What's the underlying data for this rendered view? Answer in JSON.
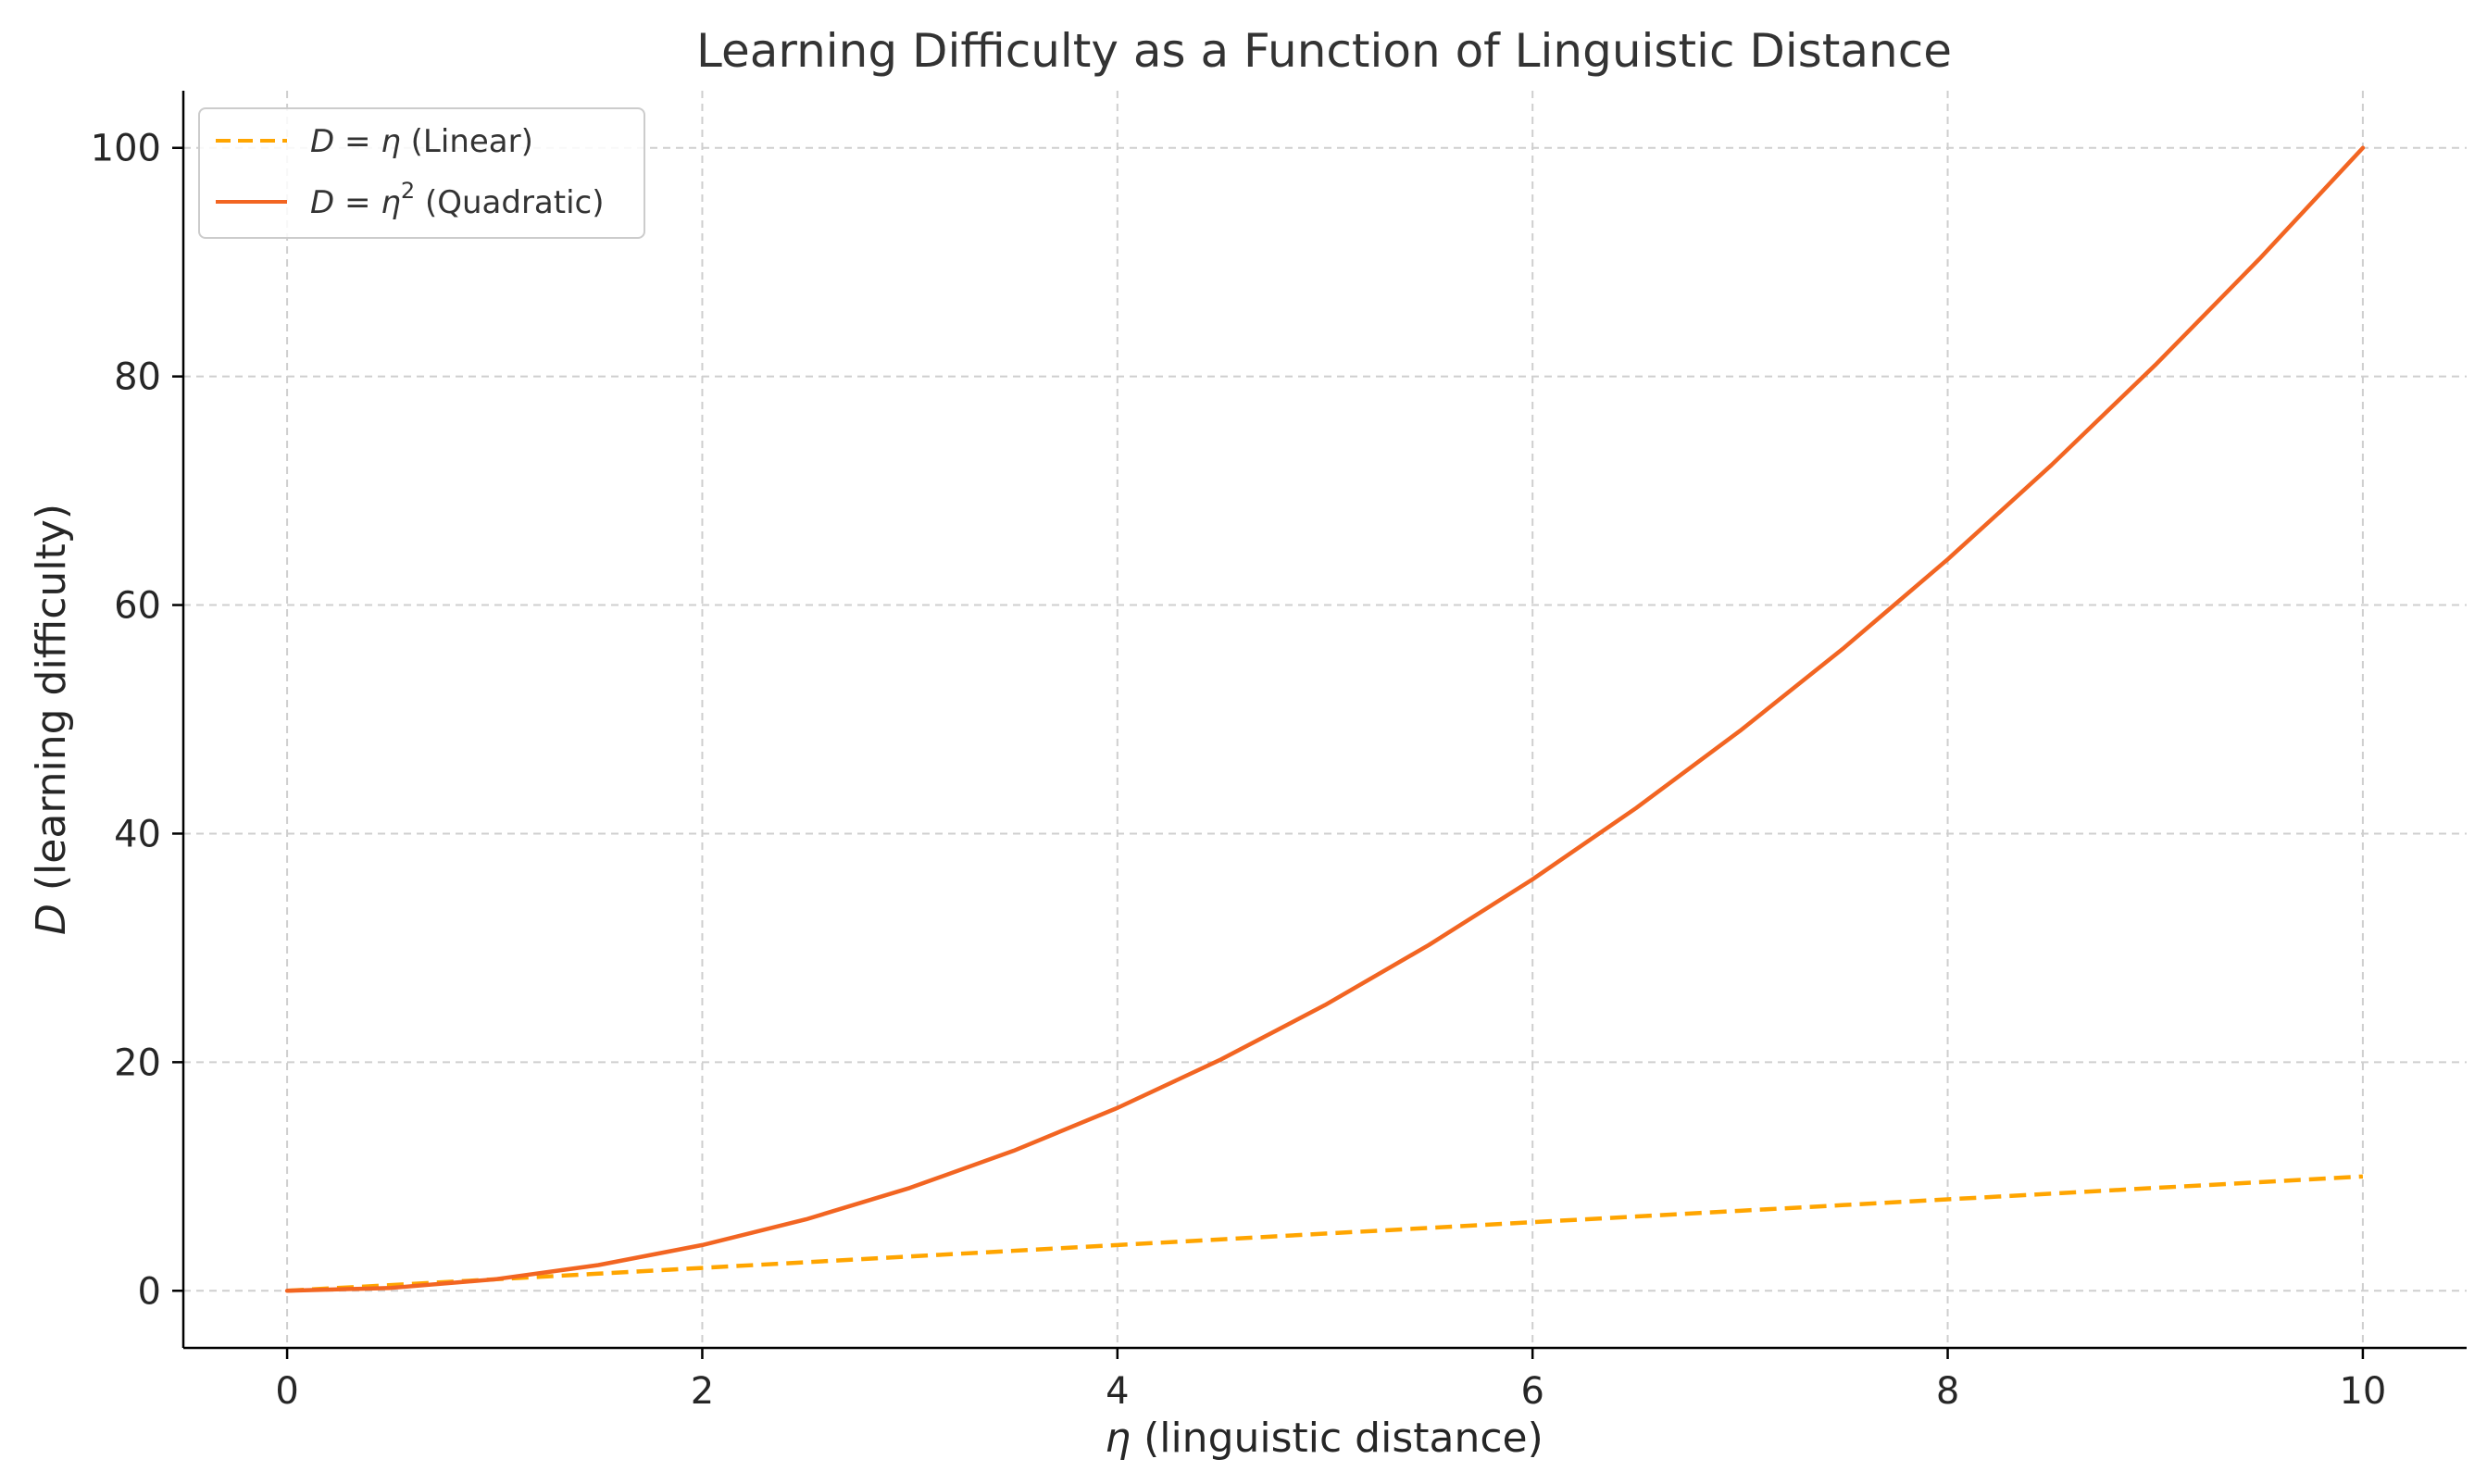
{
  "chart_data": {
    "type": "line",
    "title": "Learning Difficulty as a Function of Linguistic Distance",
    "xlabel": {
      "symbol": "η",
      "text": " (linguistic distance)"
    },
    "ylabel": {
      "symbol": "D",
      "text": " (learning difficulty)"
    },
    "xlim": [
      -0.5,
      10.5
    ],
    "ylim": [
      -5,
      105
    ],
    "xticks": [
      0,
      2,
      4,
      6,
      8,
      10
    ],
    "yticks": [
      0,
      20,
      40,
      60,
      80,
      100
    ],
    "grid": true,
    "legend_position": "top-left",
    "x": [
      0,
      0.5,
      1,
      1.5,
      2,
      2.5,
      3,
      3.5,
      4,
      4.5,
      5,
      5.5,
      6,
      6.5,
      7,
      7.5,
      8,
      8.5,
      9,
      9.5,
      10
    ],
    "series": [
      {
        "key": "linear",
        "legend": {
          "lhs": "D",
          "eq": " = ",
          "rhs": "η",
          "sup": "",
          "note": " (Linear)"
        },
        "color": "#FFA500",
        "style": "dashed",
        "values": [
          0,
          0.5,
          1,
          1.5,
          2,
          2.5,
          3,
          3.5,
          4,
          4.5,
          5,
          5.5,
          6,
          6.5,
          7,
          7.5,
          8,
          8.5,
          9,
          9.5,
          10
        ]
      },
      {
        "key": "quadratic",
        "legend": {
          "lhs": "D",
          "eq": " = ",
          "rhs": "η",
          "sup": "2",
          "note": " (Quadratic)"
        },
        "color": "#F26522",
        "style": "solid",
        "values": [
          0,
          0.25,
          1,
          2.25,
          4,
          6.25,
          9,
          12.25,
          16,
          20.25,
          25,
          30.25,
          36,
          42.25,
          49,
          56.25,
          64,
          72.25,
          81,
          90.25,
          100
        ]
      }
    ]
  }
}
